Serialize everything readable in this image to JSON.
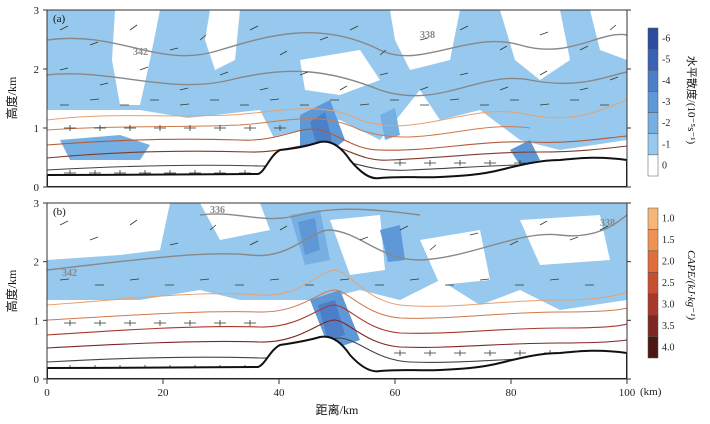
{
  "chart_data": {
    "type": "contour",
    "xlabel": "距离/km",
    "x_unit": "(km)",
    "xlim": [
      0,
      100
    ],
    "x_ticks": [
      0,
      20,
      40,
      60,
      80,
      100
    ],
    "panels": [
      {
        "label": "(a)",
        "ylabel": "高度/km",
        "ylim": [
          0,
          3
        ],
        "y_ticks": [
          0,
          1,
          2,
          3
        ],
        "colorbar": {
          "label": "水平散度/(10⁻⁵s⁻¹)",
          "ticks": [
            "-6",
            "-5",
            "-4",
            "-3",
            "-2",
            "-1",
            "0"
          ],
          "colors": [
            "#2d4b9c",
            "#3a62b3",
            "#4c7fc8",
            "#5f98d6",
            "#76b0e3",
            "#97c9ee",
            "#ffffff"
          ]
        },
        "theta_contour_labels": [
          "342",
          "338"
        ],
        "terrain_km": [
          [
            0,
            0.07
          ],
          [
            20,
            0.08
          ],
          [
            35,
            0.1
          ],
          [
            37,
            0.14
          ],
          [
            38.5,
            0.5
          ],
          [
            40,
            0.55
          ],
          [
            45,
            0.6
          ],
          [
            48,
            0.8
          ],
          [
            50,
            0.75
          ],
          [
            53,
            0.7
          ],
          [
            55,
            0.5
          ],
          [
            57,
            0.25
          ],
          [
            60,
            0.1
          ],
          [
            70,
            0.2
          ],
          [
            80,
            0.4
          ],
          [
            90,
            0.55
          ],
          [
            100,
            0.5
          ]
        ]
      },
      {
        "label": "(b)",
        "ylabel": "高度/km",
        "ylim": [
          0,
          3
        ],
        "y_ticks": [
          0,
          1,
          2,
          3
        ],
        "colorbar": {
          "label": "CAPE/(kJ·kg⁻¹)",
          "ticks": [
            "1.0",
            "1.5",
            "2.0",
            "2.5",
            "3.0",
            "3.5",
            "4.0"
          ],
          "colors": [
            "#f7b678",
            "#ef9255",
            "#e06d3c",
            "#c9502f",
            "#a8392a",
            "#7e2620",
            "#4d1812"
          ]
        },
        "theta_contour_labels": [
          "342",
          "336",
          "338"
        ],
        "terrain_km": [
          [
            0,
            0.07
          ],
          [
            20,
            0.08
          ],
          [
            35,
            0.1
          ],
          [
            37,
            0.14
          ],
          [
            38.5,
            0.5
          ],
          [
            40,
            0.55
          ],
          [
            45,
            0.6
          ],
          [
            48,
            0.8
          ],
          [
            50,
            0.75
          ],
          [
            53,
            0.7
          ],
          [
            55,
            0.5
          ],
          [
            57,
            0.25
          ],
          [
            60,
            0.1
          ],
          [
            70,
            0.2
          ],
          [
            80,
            0.4
          ],
          [
            90,
            0.55
          ],
          [
            100,
            0.5
          ]
        ]
      }
    ]
  }
}
